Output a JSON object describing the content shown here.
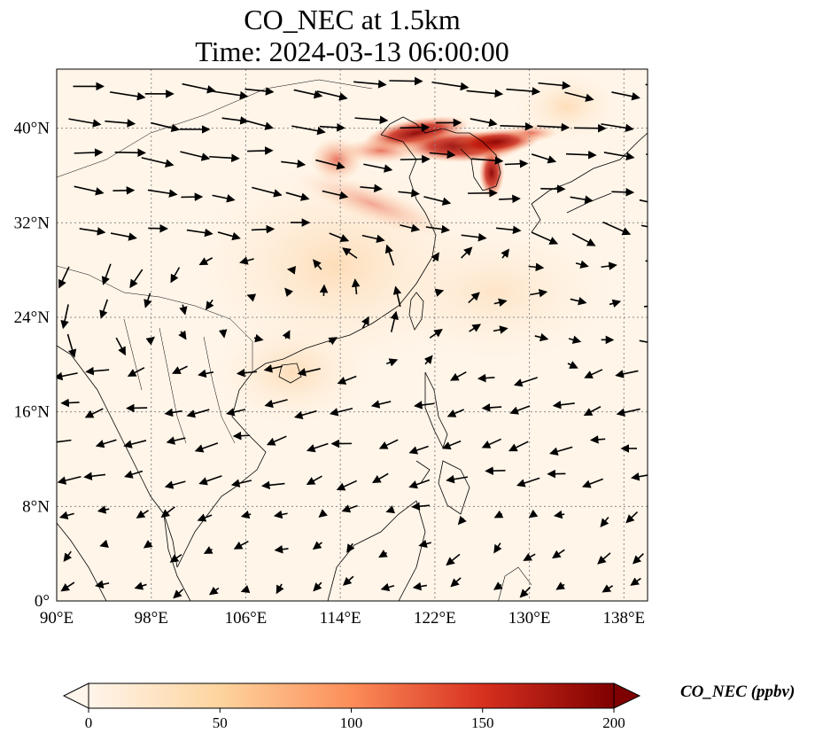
{
  "title": {
    "line1": "CO_NEC at 1.5km",
    "line2": "Time: 2024-03-13 06:00:00"
  },
  "map": {
    "lon_range": [
      90,
      140
    ],
    "lat_range": [
      0,
      45
    ],
    "lon_ticks": [
      "90°E",
      "98°E",
      "106°E",
      "114°E",
      "122°E",
      "130°E",
      "138°E"
    ],
    "lat_ticks": [
      "0°",
      "8°N",
      "16°N",
      "24°N",
      "32°N",
      "40°N"
    ],
    "lon_tick_values": [
      90,
      98,
      106,
      114,
      122,
      130,
      138
    ],
    "lat_tick_values": [
      0,
      8,
      16,
      24,
      32,
      40
    ],
    "gridlines": "dotted",
    "background_color": "#fff5e9",
    "high_concentration_region": "North China Plain – Korea (approx. 36°N–41°N, 113°E–130°E)"
  },
  "colorbar": {
    "label": "CO_NEC (ppbv)",
    "ticks": [
      "0",
      "50",
      "100",
      "150",
      "200"
    ],
    "min": 0,
    "max": 200,
    "extend": "both",
    "colors": [
      "#fff5eb",
      "#fdd49e",
      "#fc8d59",
      "#d7301f",
      "#7f0000"
    ]
  }
}
